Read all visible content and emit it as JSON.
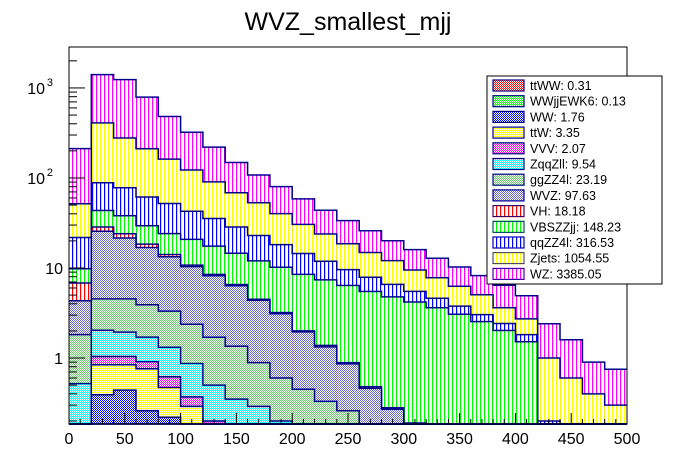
{
  "chart_data": {
    "type": "bar",
    "subtype": "stacked-histogram",
    "title": "WVZ_smallest_mjj",
    "xlabel": "",
    "ylabel": "",
    "xlim": [
      0,
      500
    ],
    "ylim": [
      0.185,
      2850
    ],
    "yscale": "log",
    "bin_width": 20,
    "x_ticks": [
      0,
      50,
      100,
      150,
      200,
      250,
      300,
      350,
      400,
      450,
      500
    ],
    "x_tick_labels": [
      "0",
      "50",
      "100",
      "150",
      "200",
      "250",
      "300",
      "350",
      "400",
      "450",
      "500"
    ],
    "y_tick_labels": [
      {
        "value": 1,
        "label": "1"
      },
      {
        "value": 10,
        "label": "10"
      },
      {
        "value": 100,
        "label": "10",
        "exponent": "2"
      },
      {
        "value": 1000,
        "label": "10",
        "exponent": "3"
      }
    ],
    "grid": false,
    "legend_position": "top-right",
    "bin_edges": [
      0,
      20,
      40,
      60,
      80,
      100,
      120,
      140,
      160,
      180,
      200,
      220,
      240,
      260,
      280,
      300,
      320,
      340,
      360,
      380,
      400,
      420,
      440,
      460,
      480,
      500
    ],
    "series": [
      {
        "name": "ttWW",
        "legend": "ttWW: 0.31",
        "color": "#ff0000",
        "pattern": "crosshatch",
        "values": [
          0.02,
          0.03,
          0.03,
          0.03,
          0.03,
          0.03,
          0.02,
          0.02,
          0.02,
          0.01,
          0.01,
          0.01,
          0.01,
          0.01,
          0,
          0,
          0,
          0,
          0,
          0,
          0,
          0,
          0,
          0,
          0
        ]
      },
      {
        "name": "WWjjEWK6",
        "legend": "WWjjEWK6: 0.13",
        "color": "#00ff00",
        "pattern": "crosshatch",
        "values": [
          0.01,
          0.01,
          0.01,
          0.01,
          0.01,
          0.01,
          0.01,
          0.01,
          0.01,
          0.01,
          0.01,
          0.01,
          0.01,
          0,
          0,
          0,
          0,
          0,
          0,
          0,
          0,
          0,
          0,
          0,
          0
        ]
      },
      {
        "name": "WW",
        "legend": "WW: 1.76",
        "color": "#0000ff",
        "pattern": "crosshatch",
        "values": [
          0.03,
          0.35,
          0.4,
          0.22,
          0.18,
          0.05,
          0.02,
          0.02,
          0.02,
          0.02,
          0.01,
          0.01,
          0.01,
          0,
          0,
          0,
          0,
          0,
          0,
          0,
          0,
          0,
          0,
          0,
          0
        ]
      },
      {
        "name": "ttW",
        "legend": "ttW: 3.35",
        "color": "#ffff00",
        "pattern": "crosshatch",
        "values": [
          0.01,
          0.45,
          0.4,
          0.5,
          0.25,
          0.2,
          0.1,
          0.05,
          0.05,
          0.03,
          0.02,
          0.02,
          0.01,
          0.01,
          0.01,
          0,
          0,
          0,
          0,
          0,
          0,
          0,
          0,
          0,
          0
        ]
      },
      {
        "name": "VVV",
        "legend": "VVV: 2.07",
        "color": "#ff00ff",
        "pattern": "crosshatch",
        "values": [
          0.1,
          0.2,
          0.2,
          0.15,
          0.15,
          0.08,
          0.05,
          0.05,
          0.04,
          0.03,
          0.02,
          0.02,
          0.02,
          0.01,
          0.01,
          0.01,
          0,
          0,
          0,
          0,
          0,
          0,
          0,
          0,
          0
        ]
      },
      {
        "name": "ZqqZll",
        "legend": "ZqqZll: 9.54",
        "color": "#00ffff",
        "pattern": "crosshatch",
        "values": [
          0.35,
          1.0,
          0.9,
          0.8,
          0.7,
          0.5,
          0.3,
          0.2,
          0.15,
          0.1,
          0.08,
          0.06,
          0.05,
          0.03,
          0.02,
          0.02,
          0.01,
          0.01,
          0,
          0,
          0,
          0,
          0,
          0,
          0
        ]
      },
      {
        "name": "ggZZ4l",
        "legend": "ggZZ4l: 23.19",
        "color": "#66cc66",
        "pattern": "crosshatch",
        "values": [
          1.3,
          2.5,
          2.6,
          2.2,
          2.0,
          1.5,
          1.2,
          1.0,
          0.6,
          0.4,
          0.3,
          0.2,
          0.15,
          0.1,
          0.08,
          0.05,
          0.04,
          0.03,
          0.02,
          0.01,
          0.01,
          0,
          0,
          0,
          0
        ]
      },
      {
        "name": "WVZ",
        "legend": "WVZ: 97.63",
        "color": "#6666cc",
        "pattern": "crosshatch",
        "values": [
          2.5,
          21,
          17,
          13,
          10,
          8,
          6.5,
          5,
          3.5,
          2.5,
          1.5,
          1.0,
          0.6,
          0.3,
          0.15,
          0.1,
          0.05,
          0.03,
          0.02,
          0.01,
          0.01,
          0,
          0,
          0,
          0
        ]
      },
      {
        "name": "VH",
        "legend": "VH: 18.18",
        "color": "#ff0000",
        "pattern": "vertical",
        "values": [
          2.5,
          3,
          2.5,
          1.5,
          0.8,
          0.4,
          0.3,
          0.2,
          0.1,
          0.1,
          0.05,
          0.05,
          0.03,
          0.02,
          0.01,
          0.01,
          0.01,
          0,
          0,
          0,
          0,
          0,
          0,
          0,
          0
        ]
      },
      {
        "name": "VBSZZjj",
        "legend": "VBSZZjj: 148.23",
        "color": "#00ff00",
        "pattern": "vertical",
        "values": [
          3,
          15,
          14,
          11,
          10,
          10,
          9,
          8,
          7.5,
          7,
          6.5,
          6,
          5.5,
          5,
          4.5,
          4,
          3.5,
          3,
          2.5,
          2,
          1.5,
          0,
          0,
          0,
          0
        ]
      },
      {
        "name": "qqZZ4l",
        "legend": "qqZZ4l: 316.53",
        "color": "#0000ff",
        "pattern": "vertical",
        "values": [
          12,
          45,
          40,
          32,
          28,
          22,
          18,
          14,
          11,
          8,
          6,
          4.5,
          3.2,
          2.4,
          1.8,
          1.3,
          1.0,
          0.7,
          0.5,
          0.4,
          0.3,
          0.2,
          0,
          0,
          0
        ]
      },
      {
        "name": "Zjets",
        "legend": "Zjets: 1054.55",
        "color": "#ffff00",
        "pattern": "vertical",
        "values": [
          30,
          320,
          200,
          150,
          110,
          80,
          55,
          40,
          30,
          22,
          16,
          12,
          9,
          7,
          5.5,
          4,
          3.2,
          2.5,
          2,
          1.2,
          0.9,
          0.8,
          0.6,
          0.4,
          0.3
        ]
      },
      {
        "name": "WZ",
        "legend": "WZ: 3385.05",
        "color": "#ff00ff",
        "pattern": "vertical",
        "values": [
          160,
          1000,
          960,
          580,
          320,
          200,
          130,
          80,
          55,
          40,
          28,
          20,
          15,
          11,
          8,
          6.5,
          5,
          4,
          3.2,
          2.8,
          2.2,
          1.4,
          1.0,
          0.5,
          0.45
        ]
      }
    ]
  }
}
